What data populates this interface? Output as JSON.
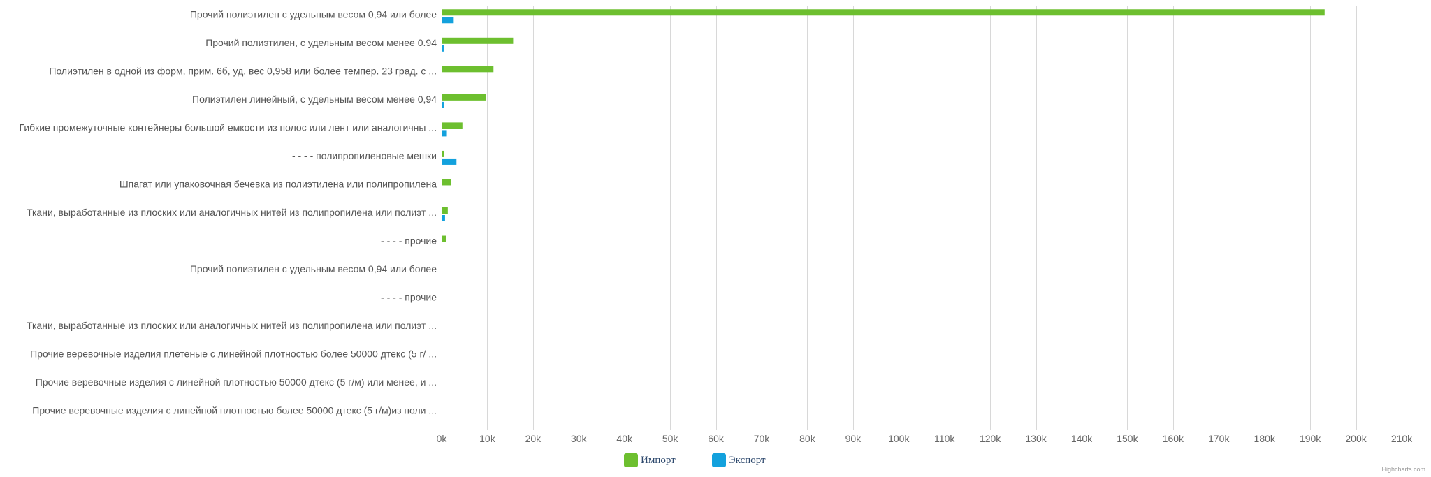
{
  "chart_data": {
    "type": "bar",
    "orientation": "horizontal",
    "categories": [
      "Прочий полиэтилен с удельным весом 0,94 или более",
      "Прочий полиэтилен, с удельным весом менее 0.94",
      "Полиэтилен в одной из форм, прим. 6б, уд. вес 0,958 или более темпер. 23 град. с ...",
      "Полиэтилен линейный, с удельным весом менее 0,94",
      "Гибкие промежуточные контейнеры большой емкости из полос или лент или аналогичны ...",
      "- - - - полипропиленовые мешки",
      "Шпагат или упаковочная бечевка из полиэтилена или полипропилена",
      "Ткани, выработанные из плоских или аналогичных нитей из полипропилена или полиэт ...",
      "- - - - прочие",
      "Прочий полиэтилен с удельным весом 0,94 или более",
      "- - - - прочие",
      "Ткани, выработанные из плоских или аналогичных нитей из полипропилена или полиэт ...",
      "Прочие веревочные изделия плетеные с линейной плотностью более 50000 дтекс (5 г/ ...",
      "Прочие веревочные изделия с линейной плотностью 50000 дтекс (5 г/м) или менее, и ...",
      "Прочие веревочные изделия с линейной плотностью более 50000 дтекс (5 г/м)из поли ..."
    ],
    "series": [
      {
        "name": "Импорт",
        "color": "#6dbf2f",
        "values": [
          193000,
          15500,
          11200,
          9500,
          4400,
          400,
          1900,
          1200,
          800,
          0,
          0,
          0,
          0,
          0,
          0
        ]
      },
      {
        "name": "Экспорт",
        "color": "#13a1dd",
        "values": [
          2500,
          300,
          0,
          300,
          1000,
          3100,
          0,
          600,
          0,
          0,
          0,
          0,
          0,
          0,
          0
        ]
      }
    ],
    "xlim": [
      0,
      210000
    ],
    "ticks": [
      "0k",
      "10k",
      "20k",
      "30k",
      "40k",
      "50k",
      "60k",
      "70k",
      "80k",
      "90k",
      "100k",
      "110k",
      "120k",
      "130k",
      "140k",
      "150k",
      "160k",
      "170k",
      "180k",
      "190k",
      "200k",
      "210k"
    ],
    "tick_step": 10000,
    "grid": true,
    "legend": "bottom-center"
  },
  "credits": "Highcharts.com"
}
